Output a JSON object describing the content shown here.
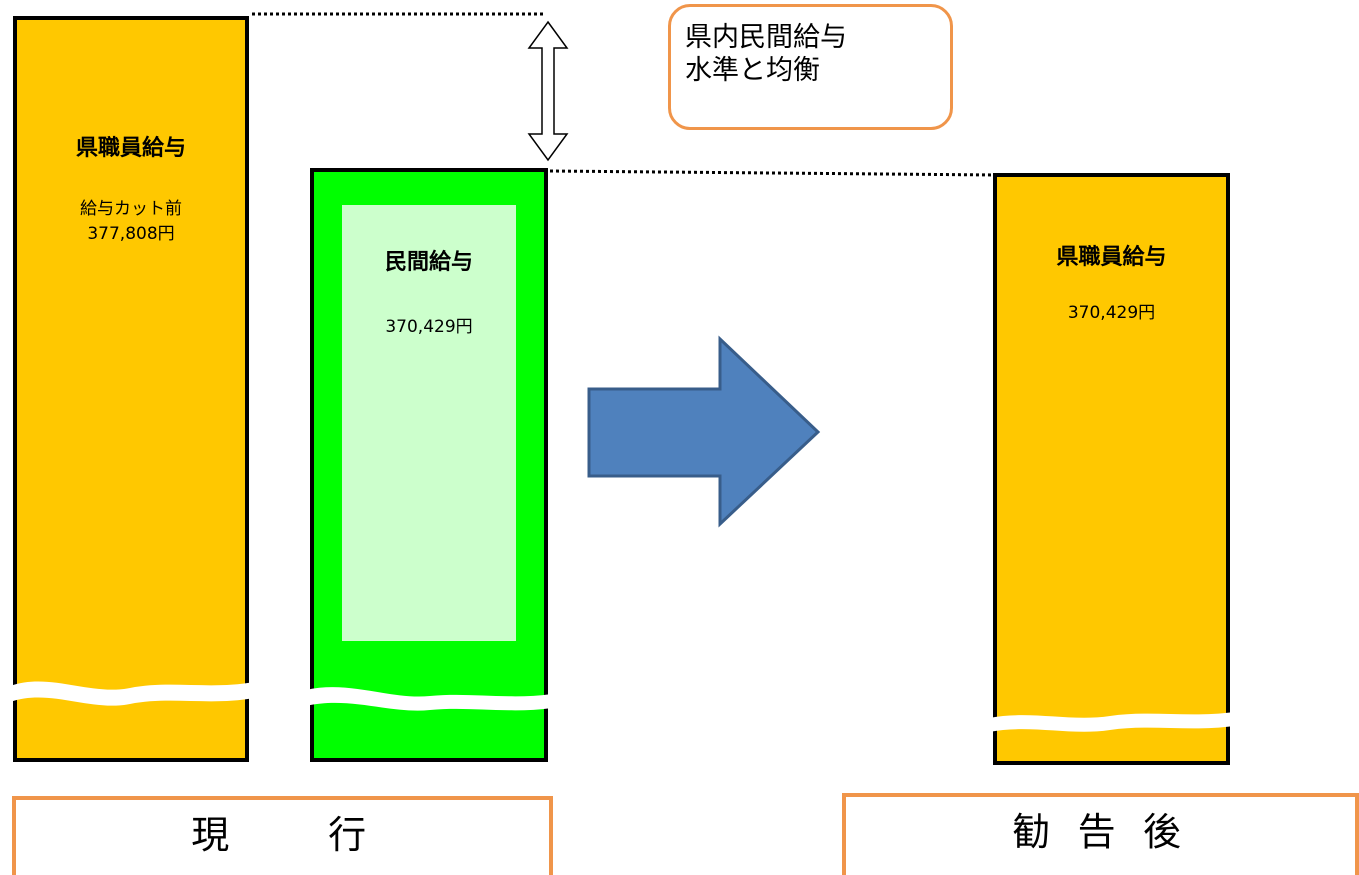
{
  "callout": {
    "line1": "県内民間給与",
    "line2": "水準と均衡"
  },
  "current_staff": {
    "title": "県職員給与",
    "line1": "給与カット前",
    "line2": "377,808円"
  },
  "private_sector": {
    "title": "民間給与",
    "value": "370,429円"
  },
  "after_staff": {
    "title": "県職員給与",
    "value": "370,429円"
  },
  "footer": {
    "current": "現　　行",
    "after": "勧 告 後"
  },
  "colors": {
    "staff_bar": "#ffc800",
    "private_bar": "#00ff00",
    "private_inner": "#ccffcc",
    "arrow_fill": "#4f81bd",
    "arrow_stroke": "#385d8a",
    "box_border": "#f0954a"
  }
}
